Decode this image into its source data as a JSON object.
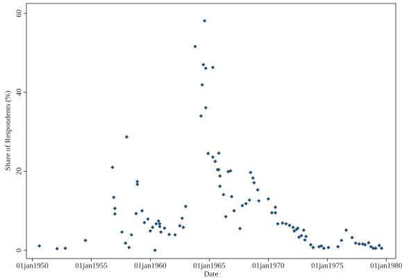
{
  "chart_data": {
    "type": "scatter",
    "x_label": "Date",
    "y_label": "Share of Respondents (%)",
    "color": "#1f4e79",
    "xlim": [
      1949.5,
      1980.8
    ],
    "ylim": [
      -2.1,
      62.5
    ],
    "xticks": [
      {
        "value": 1950,
        "label": "01jan1950"
      },
      {
        "value": 1955,
        "label": "01jan1955"
      },
      {
        "value": 1960,
        "label": "01jan1960"
      },
      {
        "value": 1965,
        "label": "01jan1965"
      },
      {
        "value": 1970,
        "label": "01jan1970"
      },
      {
        "value": 1975,
        "label": "01jan1975"
      },
      {
        "value": 1980,
        "label": "01jan1980"
      }
    ],
    "yticks": [
      0,
      20,
      40,
      60
    ],
    "grid": false,
    "x": [
      1950.6,
      1952.1,
      1952.8,
      1954.5,
      1956.8,
      1956.9,
      1957.0,
      1957.0,
      1957.6,
      1957.9,
      1958.0,
      1958.2,
      1958.4,
      1958.8,
      1958.9,
      1958.9,
      1959.3,
      1959.5,
      1959.8,
      1960.0,
      1960.2,
      1960.4,
      1960.5,
      1960.7,
      1960.8,
      1960.8,
      1960.9,
      1961.2,
      1961.6,
      1962.1,
      1962.5,
      1962.7,
      1962.8,
      1963.0,
      1963.8,
      1964.3,
      1964.4,
      1964.5,
      1964.6,
      1964.7,
      1964.7,
      1964.9,
      1965.3,
      1965.3,
      1965.5,
      1965.7,
      1965.8,
      1965.8,
      1965.9,
      1965.9,
      1966.2,
      1966.4,
      1966.6,
      1966.8,
      1966.9,
      1967.1,
      1967.6,
      1967.8,
      1968.1,
      1968.4,
      1968.5,
      1968.7,
      1968.8,
      1969.1,
      1969.2,
      1970.0,
      1970.3,
      1970.6,
      1970.6,
      1970.8,
      1971.2,
      1971.5,
      1971.8,
      1972.1,
      1972.2,
      1972.4,
      1972.5,
      1972.6,
      1972.8,
      1973.0,
      1973.1,
      1973.2,
      1973.6,
      1973.8,
      1974.3,
      1974.5,
      1974.7,
      1975.1,
      1975.9,
      1976.2,
      1976.6,
      1977.1,
      1977.4,
      1977.7,
      1978.0,
      1978.2,
      1978.5,
      1978.7,
      1978.9,
      1979.1,
      1979.4,
      1979.6
    ],
    "values": [
      1.1,
      0.4,
      0.5,
      2.5,
      21,
      13.4,
      10.6,
      9.2,
      4.6,
      1.8,
      28.7,
      0.7,
      3.9,
      9.3,
      17.4,
      16.7,
      10,
      7,
      7.9,
      4.9,
      5.8,
      0,
      6.7,
      7.4,
      6.7,
      6,
      4.6,
      5.6,
      4,
      3.9,
      6.2,
      8.1,
      5.8,
      11.1,
      51.6,
      34,
      41.9,
      47,
      58.1,
      46.1,
      36.1,
      24.5,
      23.6,
      46.3,
      22.5,
      20.4,
      24.6,
      20.4,
      18.8,
      16.2,
      14.1,
      8.5,
      19.9,
      20.1,
      13.6,
      10,
      5.5,
      11.3,
      11.8,
      12.7,
      19.7,
      18.3,
      17.1,
      15.3,
      12.5,
      13,
      9.5,
      10.9,
      9.5,
      6.7,
      6.9,
      6.7,
      6.3,
      5.8,
      4.9,
      5.3,
      5.6,
      3.3,
      3.7,
      5.1,
      2.6,
      3.5,
      1.4,
      0.7,
      0.9,
      1.1,
      0.5,
      0.7,
      0.9,
      2.5,
      5.1,
      3.2,
      1.8,
      1.6,
      1.6,
      1.4,
      1.9,
      0.9,
      0.5,
      0.5,
      1.2,
      0.5
    ]
  }
}
